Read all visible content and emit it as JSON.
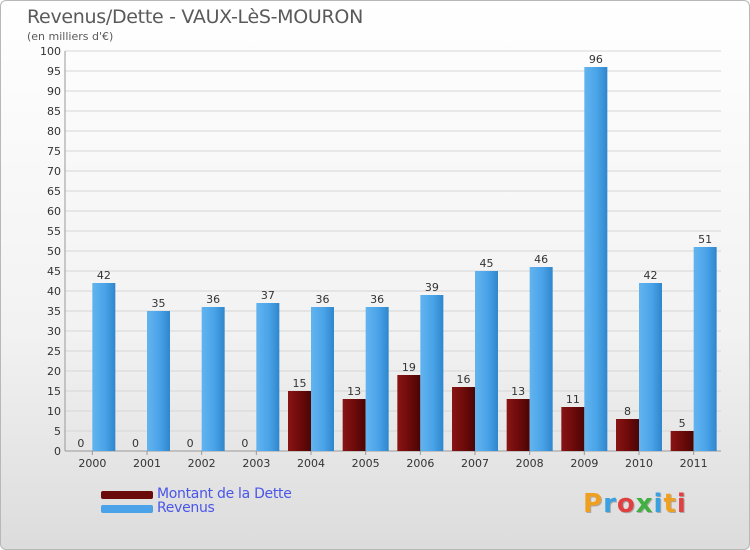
{
  "title": "Revenus/Dette - VAUX-LèS-MOURON",
  "subtitle": "(en milliers d'€)",
  "logo": {
    "text": "Proxiti"
  },
  "legend": {
    "items": [
      {
        "label": "Montant de la Dette",
        "color": "#6b0a0a"
      },
      {
        "label": "Revenus",
        "color": "#4aa3e8"
      }
    ]
  },
  "chart_data": {
    "type": "bar",
    "title": "Revenus/Dette - VAUX-LèS-MOURON",
    "ylabel": "(en milliers d'€)",
    "xlabel": "",
    "ylim": [
      0,
      100
    ],
    "ytick_step": 5,
    "grid": true,
    "legend_position": "bottom-left",
    "categories": [
      "2000",
      "2001",
      "2002",
      "2003",
      "2004",
      "2005",
      "2006",
      "2007",
      "2008",
      "2009",
      "2010",
      "2011"
    ],
    "series": [
      {
        "name": "Montant de la Dette",
        "color": "#6b0a0a",
        "values": [
          0,
          0,
          0,
          0,
          15,
          13,
          19,
          16,
          13,
          11,
          8,
          5
        ]
      },
      {
        "name": "Revenus",
        "color": "#4aa3e8",
        "values": [
          42,
          35,
          36,
          37,
          36,
          36,
          39,
          45,
          46,
          96,
          42,
          51
        ]
      }
    ]
  }
}
